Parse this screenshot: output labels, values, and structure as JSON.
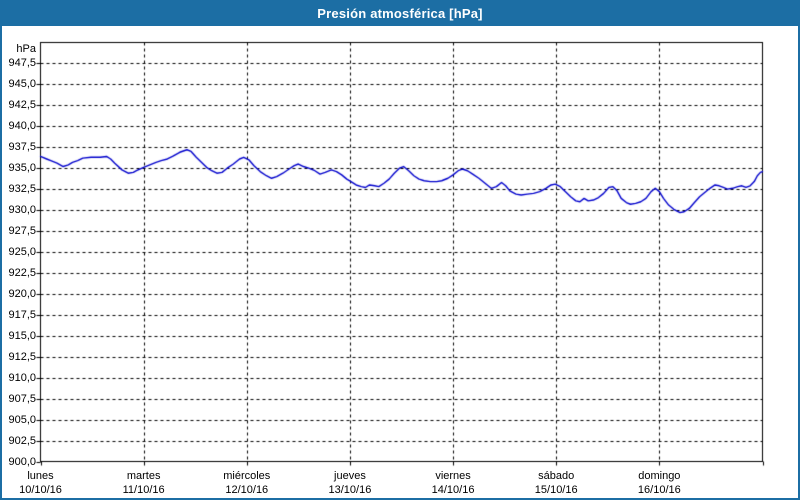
{
  "window": {
    "title": "Presión atmosférica [hPa]"
  },
  "colors": {
    "titlebar_bg": "#1C6EA4",
    "titlebar_text": "#FFFFFF",
    "window_border": "#1C6EA4",
    "plot_background": "#FFFFFF",
    "axis_color": "#000000",
    "grid_color": "#000000",
    "label_color": "#000000",
    "line_color": "#0000CC"
  },
  "chart_data": {
    "type": "line",
    "title": "Presión atmosférica [hPa]",
    "ylabel": "hPa",
    "xlabel": "",
    "ylim": [
      900,
      950
    ],
    "ytick_step": 2.5,
    "ytick_labels": [
      "947,5",
      "945,0",
      "942,5",
      "940,0",
      "937,5",
      "935,0",
      "932,5",
      "930,0",
      "927,5",
      "925,0",
      "922,5",
      "920,0",
      "917,5",
      "915,0",
      "912,5",
      "910,0",
      "907,5",
      "905,0",
      "902,5",
      "900,0"
    ],
    "grid": "dashed",
    "legend_position": "none",
    "x_axis": {
      "span_days": 7,
      "days": [
        {
          "name": "lunes",
          "date": "10/10/16"
        },
        {
          "name": "martes",
          "date": "11/10/16"
        },
        {
          "name": "miércoles",
          "date": "12/10/16"
        },
        {
          "name": "jueves",
          "date": "13/10/16"
        },
        {
          "name": "viernes",
          "date": "14/10/16"
        },
        {
          "name": "sábado",
          "date": "15/10/16"
        },
        {
          "name": "domingo",
          "date": "16/10/16"
        }
      ]
    },
    "series": [
      {
        "name": "Presión atmosférica",
        "unit": "hPa",
        "points": [
          [
            0.0,
            936.4
          ],
          [
            0.06,
            936.1
          ],
          [
            0.1,
            935.9
          ],
          [
            0.16,
            935.6
          ],
          [
            0.22,
            935.2
          ],
          [
            0.27,
            935.4
          ],
          [
            0.31,
            935.7
          ],
          [
            0.36,
            935.9
          ],
          [
            0.41,
            936.2
          ],
          [
            0.49,
            936.3
          ],
          [
            0.58,
            936.3
          ],
          [
            0.64,
            936.4
          ],
          [
            0.68,
            936.1
          ],
          [
            0.72,
            935.6
          ],
          [
            0.79,
            934.8
          ],
          [
            0.85,
            934.4
          ],
          [
            0.9,
            934.5
          ],
          [
            0.93,
            934.7
          ],
          [
            1.0,
            935.1
          ],
          [
            1.06,
            935.4
          ],
          [
            1.12,
            935.7
          ],
          [
            1.17,
            935.9
          ],
          [
            1.23,
            936.1
          ],
          [
            1.28,
            936.4
          ],
          [
            1.35,
            936.9
          ],
          [
            1.42,
            937.2
          ],
          [
            1.46,
            937.0
          ],
          [
            1.51,
            936.3
          ],
          [
            1.57,
            935.6
          ],
          [
            1.61,
            935.1
          ],
          [
            1.66,
            934.7
          ],
          [
            1.71,
            934.4
          ],
          [
            1.76,
            934.5
          ],
          [
            1.81,
            935.0
          ],
          [
            1.87,
            935.5
          ],
          [
            1.93,
            936.1
          ],
          [
            1.97,
            936.3
          ],
          [
            2.02,
            936.0
          ],
          [
            2.07,
            935.3
          ],
          [
            2.13,
            934.6
          ],
          [
            2.19,
            934.1
          ],
          [
            2.24,
            933.8
          ],
          [
            2.29,
            934.0
          ],
          [
            2.35,
            934.4
          ],
          [
            2.41,
            934.9
          ],
          [
            2.46,
            935.3
          ],
          [
            2.5,
            935.5
          ],
          [
            2.55,
            935.2
          ],
          [
            2.6,
            935.0
          ],
          [
            2.66,
            934.7
          ],
          [
            2.71,
            934.3
          ],
          [
            2.76,
            934.5
          ],
          [
            2.82,
            934.8
          ],
          [
            2.87,
            934.6
          ],
          [
            2.92,
            934.2
          ],
          [
            2.97,
            933.7
          ],
          [
            3.01,
            933.4
          ],
          [
            3.06,
            933.0
          ],
          [
            3.11,
            932.8
          ],
          [
            3.15,
            932.7
          ],
          [
            3.19,
            933.0
          ],
          [
            3.24,
            932.9
          ],
          [
            3.28,
            932.8
          ],
          [
            3.33,
            933.2
          ],
          [
            3.38,
            933.7
          ],
          [
            3.43,
            934.4
          ],
          [
            3.48,
            935.0
          ],
          [
            3.52,
            935.2
          ],
          [
            3.57,
            934.7
          ],
          [
            3.62,
            934.1
          ],
          [
            3.67,
            933.7
          ],
          [
            3.72,
            933.5
          ],
          [
            3.78,
            933.4
          ],
          [
            3.84,
            933.4
          ],
          [
            3.89,
            933.5
          ],
          [
            3.95,
            933.8
          ],
          [
            4.0,
            934.2
          ],
          [
            4.05,
            934.7
          ],
          [
            4.09,
            934.9
          ],
          [
            4.14,
            934.7
          ],
          [
            4.19,
            934.3
          ],
          [
            4.25,
            933.8
          ],
          [
            4.31,
            933.2
          ],
          [
            4.37,
            932.6
          ],
          [
            4.42,
            932.8
          ],
          [
            4.47,
            933.3
          ],
          [
            4.51,
            932.9
          ],
          [
            4.55,
            932.3
          ],
          [
            4.61,
            931.9
          ],
          [
            4.66,
            931.8
          ],
          [
            4.72,
            931.9
          ],
          [
            4.78,
            932.0
          ],
          [
            4.84,
            932.2
          ],
          [
            4.9,
            932.6
          ],
          [
            4.95,
            933.0
          ],
          [
            4.99,
            933.1
          ],
          [
            5.04,
            932.8
          ],
          [
            5.09,
            932.2
          ],
          [
            5.14,
            931.6
          ],
          [
            5.19,
            931.1
          ],
          [
            5.23,
            931.0
          ],
          [
            5.27,
            931.4
          ],
          [
            5.31,
            931.1
          ],
          [
            5.36,
            931.2
          ],
          [
            5.41,
            931.5
          ],
          [
            5.46,
            932.0
          ],
          [
            5.51,
            932.7
          ],
          [
            5.55,
            932.8
          ],
          [
            5.59,
            932.3
          ],
          [
            5.63,
            931.4
          ],
          [
            5.68,
            930.9
          ],
          [
            5.72,
            930.7
          ],
          [
            5.77,
            930.8
          ],
          [
            5.82,
            931.0
          ],
          [
            5.87,
            931.4
          ],
          [
            5.92,
            932.2
          ],
          [
            5.96,
            932.6
          ],
          [
            6.0,
            932.2
          ],
          [
            6.04,
            931.4
          ],
          [
            6.09,
            930.6
          ],
          [
            6.14,
            930.1
          ],
          [
            6.2,
            929.7
          ],
          [
            6.24,
            929.8
          ],
          [
            6.29,
            930.2
          ],
          [
            6.34,
            930.9
          ],
          [
            6.39,
            931.6
          ],
          [
            6.44,
            932.1
          ],
          [
            6.49,
            932.6
          ],
          [
            6.54,
            933.0
          ],
          [
            6.58,
            932.9
          ],
          [
            6.62,
            932.7
          ],
          [
            6.66,
            932.5
          ],
          [
            6.71,
            932.6
          ],
          [
            6.76,
            932.8
          ],
          [
            6.8,
            932.9
          ],
          [
            6.84,
            932.7
          ],
          [
            6.88,
            932.9
          ],
          [
            6.92,
            933.4
          ],
          [
            6.95,
            934.1
          ],
          [
            6.98,
            934.5
          ],
          [
            7.0,
            934.6
          ]
        ]
      }
    ]
  }
}
